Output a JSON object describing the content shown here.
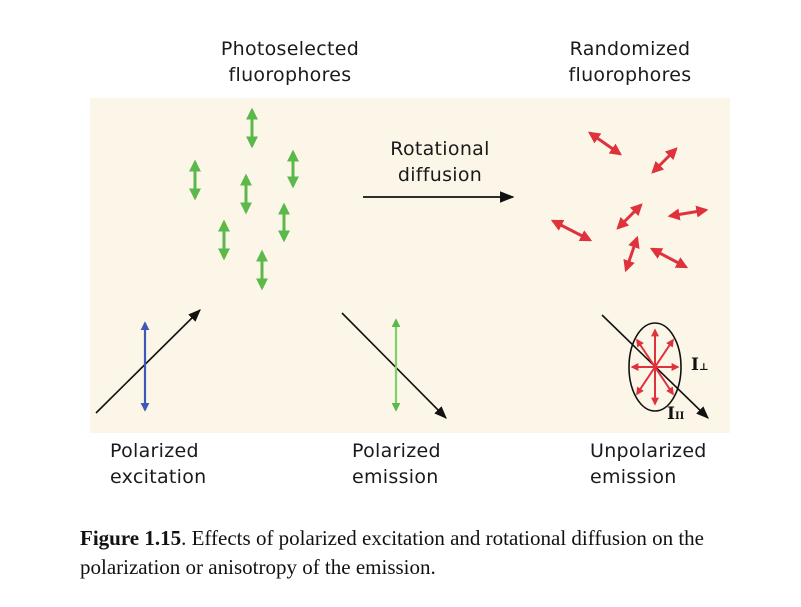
{
  "labels": {
    "photoselected": "Photoselected\nfluorophores",
    "randomized": "Randomized\nfluorophores",
    "rotational": "Rotational\ndiffusion",
    "polarized_excitation": "Polarized\nexcitation",
    "polarized_emission": "Polarized\nemission",
    "unpolarized_emission": "Unpolarized\nemission",
    "i_perp": "I",
    "i_perp_sub": "⊥",
    "i_par": "I",
    "i_par_sub": "II"
  },
  "caption": {
    "figure_number": "Figure 1.15",
    "text": ". Effects of polarized excitation and rotational diffusion on the polarization or anisotropy of the emission."
  },
  "colors": {
    "panel_background": "#fcf6e8",
    "green_dipole": "#5bb84a",
    "red_dipole": "#e0323c",
    "blue_dipole": "#3e57b8",
    "black_arrow": "#111111"
  }
}
